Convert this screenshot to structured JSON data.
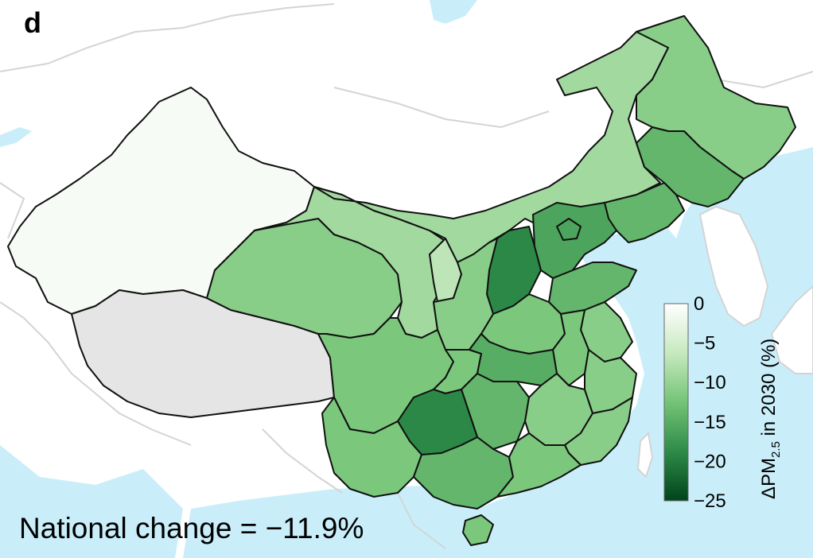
{
  "panel_label": "d",
  "national_change_text": "National change = −11.9%",
  "colors": {
    "sea": "#c9eefa",
    "land_outside": "#ffffff",
    "foreign_border": "#d4d4d4",
    "province_border": "#111111",
    "no_data": "#e5e5e5"
  },
  "legend": {
    "title_prefix": "ΔPM",
    "title_subscript": "2.5",
    "title_suffix": " in 2030 (%)",
    "ticks": [
      "0",
      "−5",
      "−10",
      "−15",
      "−20",
      "−25"
    ],
    "tick_values": [
      0,
      -5,
      -10,
      -15,
      -20,
      -25
    ],
    "range": [
      -25,
      0
    ],
    "color_stops": [
      "#00441b",
      "#2e8b48",
      "#74c476",
      "#c7e9c0",
      "#ffffff"
    ]
  },
  "regions": [
    {
      "name": "Xinjiang",
      "change": -1
    },
    {
      "name": "Tibet",
      "change": null
    },
    {
      "name": "Qinghai",
      "change": -11
    },
    {
      "name": "Gansu",
      "change": -9
    },
    {
      "name": "Ningxia",
      "change": -7
    },
    {
      "name": "Inner Mongolia",
      "change": -9
    },
    {
      "name": "Heilongjiang",
      "change": -11
    },
    {
      "name": "Jilin",
      "change": -14
    },
    {
      "name": "Liaoning",
      "change": -14
    },
    {
      "name": "Hebei",
      "change": -16
    },
    {
      "name": "Beijing",
      "change": -16
    },
    {
      "name": "Shanxi",
      "change": -19
    },
    {
      "name": "Shandong",
      "change": -14
    },
    {
      "name": "Shaanxi",
      "change": -11
    },
    {
      "name": "Henan",
      "change": -12
    },
    {
      "name": "Jiangsu",
      "change": -11
    },
    {
      "name": "Anhui",
      "change": -12
    },
    {
      "name": "Sichuan",
      "change": -12
    },
    {
      "name": "Chongqing",
      "change": -12
    },
    {
      "name": "Hubei",
      "change": -15
    },
    {
      "name": "Hunan",
      "change": -14
    },
    {
      "name": "Jiangxi",
      "change": -11
    },
    {
      "name": "Zhejiang",
      "change": -11
    },
    {
      "name": "Fujian",
      "change": -11
    },
    {
      "name": "Guizhou",
      "change": -19
    },
    {
      "name": "Yunnan",
      "change": -12
    },
    {
      "name": "Guangxi",
      "change": -14
    },
    {
      "name": "Guangdong",
      "change": -12
    },
    {
      "name": "Hainan",
      "change": -12
    }
  ]
}
